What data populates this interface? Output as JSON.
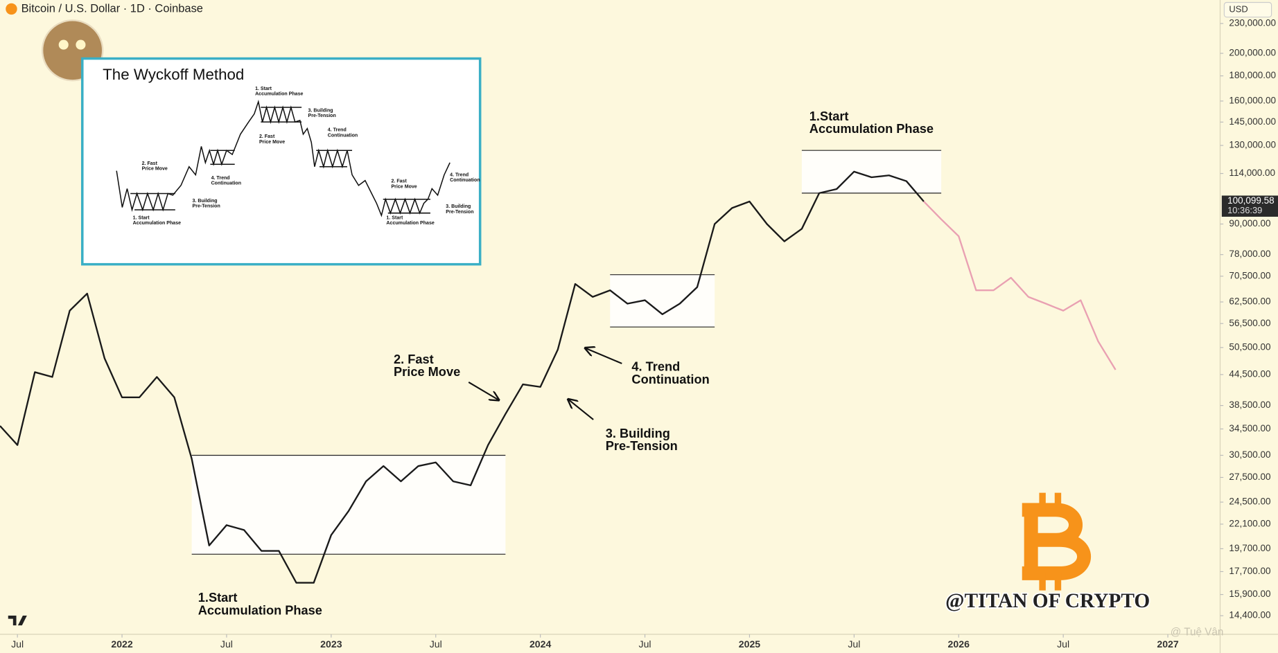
{
  "header": {
    "title": "Bitcoin / U.S. Dollar · 1D · Coinbase",
    "currency": "USD"
  },
  "chart_data": {
    "type": "line",
    "log_scale": true,
    "x": [
      "2021-06",
      "2021-07",
      "2021-08",
      "2021-09",
      "2021-10",
      "2021-11",
      "2021-12",
      "2022-01",
      "2022-02",
      "2022-03",
      "2022-04",
      "2022-05",
      "2022-06",
      "2022-07",
      "2022-08",
      "2022-09",
      "2022-10",
      "2022-11",
      "2022-12",
      "2023-01",
      "2023-02",
      "2023-03",
      "2023-04",
      "2023-05",
      "2023-06",
      "2023-07",
      "2023-08",
      "2023-09",
      "2023-10",
      "2023-11",
      "2023-12",
      "2024-01",
      "2024-02",
      "2024-03",
      "2024-04",
      "2024-05",
      "2024-06",
      "2024-07",
      "2024-08",
      "2024-09",
      "2024-10",
      "2024-11",
      "2024-12",
      "2025-01",
      "2025-02",
      "2025-03",
      "2025-04",
      "2025-05",
      "2025-06",
      "2025-07",
      "2025-08",
      "2025-09",
      "2025-10",
      "2025-11",
      "2025-12",
      "2026-01",
      "2026-02",
      "2026-03",
      "2026-04",
      "2026-05",
      "2026-06",
      "2026-07",
      "2026-08",
      "2026-09",
      "2026-10"
    ],
    "series": [
      {
        "color": "#1a1a1a",
        "values": [
          35000,
          32000,
          45000,
          44000,
          60000,
          65000,
          48000,
          40000,
          40000,
          44000,
          40000,
          30000,
          20000,
          22000,
          21500,
          19500,
          19500,
          16800,
          16800,
          21000,
          23500,
          27000,
          29000,
          27000,
          29000,
          29500,
          27000,
          26500,
          32000,
          37000,
          42500,
          42000,
          50000,
          68000,
          64000,
          66000,
          62000,
          63000,
          59000,
          62000,
          67000,
          90000,
          97000,
          100000,
          90000,
          83000,
          88000,
          104000,
          106000,
          115000,
          112000,
          113000,
          110000,
          100000,
          null,
          null,
          null,
          null,
          null,
          null,
          null,
          null,
          null,
          null,
          null
        ]
      },
      {
        "color": "#e9a0b2",
        "values": [
          null,
          null,
          null,
          null,
          null,
          null,
          null,
          null,
          null,
          null,
          null,
          null,
          null,
          null,
          null,
          null,
          null,
          null,
          null,
          null,
          null,
          null,
          null,
          null,
          null,
          null,
          null,
          null,
          null,
          null,
          null,
          null,
          null,
          null,
          null,
          null,
          null,
          null,
          null,
          null,
          null,
          null,
          null,
          null,
          null,
          null,
          null,
          null,
          null,
          null,
          null,
          null,
          null,
          100000,
          92000,
          85000,
          66000,
          66000,
          70000,
          64000,
          62000,
          60000,
          63000,
          52000,
          45500
        ]
      }
    ],
    "xlim": [
      "2021-06",
      "2027-04"
    ],
    "xticks": [
      {
        "value": "2021-07",
        "label": "Jul"
      },
      {
        "value": "2022-01",
        "label": "2022"
      },
      {
        "value": "2022-07",
        "label": "Jul"
      },
      {
        "value": "2023-01",
        "label": "2023"
      },
      {
        "value": "2023-07",
        "label": "Jul"
      },
      {
        "value": "2024-01",
        "label": "2024"
      },
      {
        "value": "2024-07",
        "label": "Jul"
      },
      {
        "value": "2025-01",
        "label": "2025"
      },
      {
        "value": "2025-07",
        "label": "Jul"
      },
      {
        "value": "2026-01",
        "label": "2026"
      },
      {
        "value": "2026-07",
        "label": "Jul"
      },
      {
        "value": "2027-01",
        "label": "2027"
      }
    ],
    "ylim": [
      13200,
      256700
    ],
    "yticks": [
      {
        "value": 230000,
        "label": "230,000.00"
      },
      {
        "value": 200000,
        "label": "200,000.00"
      },
      {
        "value": 180000,
        "label": "180,000.00"
      },
      {
        "value": 160000,
        "label": "160,000.00"
      },
      {
        "value": 145000,
        "label": "145,000.00"
      },
      {
        "value": 130000,
        "label": "130,000.00"
      },
      {
        "value": 114000,
        "label": "114,000.00"
      },
      {
        "value": 90000,
        "label": "90,000.00"
      },
      {
        "value": 78000,
        "label": "78,000.00"
      },
      {
        "value": 70500,
        "label": "70,500.00"
      },
      {
        "value": 62500,
        "label": "62,500.00"
      },
      {
        "value": 56500,
        "label": "56,500.00"
      },
      {
        "value": 50500,
        "label": "50,500.00"
      },
      {
        "value": 44500,
        "label": "44,500.00"
      },
      {
        "value": 38500,
        "label": "38,500.00"
      },
      {
        "value": 34500,
        "label": "34,500.00"
      },
      {
        "value": 30500,
        "label": "30,500.00"
      },
      {
        "value": 27500,
        "label": "27,500.00"
      },
      {
        "value": 24500,
        "label": "24,500.00"
      },
      {
        "value": 22100,
        "label": "22,100.00"
      },
      {
        "value": 19700,
        "label": "19,700.00"
      },
      {
        "value": 17700,
        "label": "17,700.00"
      },
      {
        "value": 15900,
        "label": "15,900.00"
      },
      {
        "value": 14400,
        "label": "14,400.00"
      }
    ],
    "ranges": [
      {
        "x": [
          "2022-05",
          "2023-11"
        ],
        "low": 19200,
        "high": 30500
      },
      {
        "x": [
          "2024-05",
          "2024-11"
        ],
        "low": 55600,
        "high": 71000
      },
      {
        "x": [
          "2025-04",
          "2025-12"
        ],
        "low": 104000,
        "high": 127000
      }
    ],
    "last_price": {
      "value": 100099.58,
      "label": "100,099.58"
    },
    "last_time": "10:36:39",
    "annotations": [
      [
        "1.Start",
        "Accumulation Phase"
      ],
      [
        "2. Fast",
        "Price Move"
      ],
      [
        "4. Trend",
        "Continuation"
      ],
      [
        "3. Building",
        "Pre-Tension"
      ],
      [
        "1.Start",
        "Accumulation Phase"
      ]
    ]
  },
  "inset": {
    "title": "The Wyckoff Method",
    "labels": [
      [
        "1. Start",
        "Accumulation Phase"
      ],
      [
        "2. Fast",
        "Price Move"
      ],
      [
        "4. Trend",
        "Continuation"
      ],
      [
        "3. Building",
        "Pre-Tension"
      ],
      [
        "1. Start",
        "Accumulation Phase"
      ],
      [
        "3. Building",
        "Pre-Tension"
      ],
      [
        "2. Fast",
        "Price Move"
      ],
      [
        "4. Trend",
        "Continuation"
      ],
      [
        "2. Fast",
        "Price Move"
      ],
      [
        "1. Start",
        "Accumulation Phase"
      ],
      [
        "4. Trend",
        "Continuation"
      ],
      [
        "3. Building",
        "Pre-Tension"
      ]
    ]
  },
  "branding": {
    "handle": "@TITAN OF CRYPTO",
    "watermark": "@ Tuệ Vân"
  }
}
